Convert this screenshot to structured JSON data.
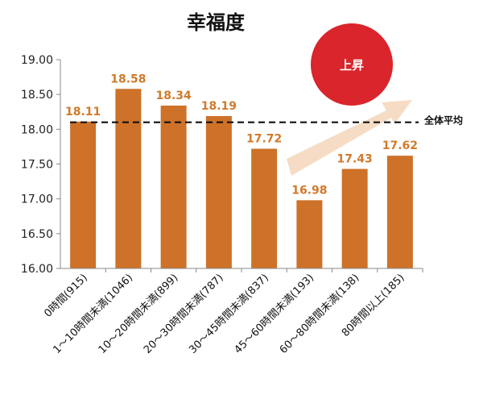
{
  "chart_data": {
    "type": "bar",
    "title": "幸福度",
    "categories": [
      "0時間(915)",
      "1～10時間未満(1046)",
      "10～20時間未満(899)",
      "20～30時間未満(787)",
      "30～45時間未満(837)",
      "45～60時間未満(193)",
      "60～80時間未満(138)",
      "80時間以上(185)"
    ],
    "values": [
      18.11,
      18.58,
      18.34,
      18.19,
      17.72,
      16.98,
      17.43,
      17.62
    ],
    "data_labels": [
      "18.11",
      "18.58",
      "18.34",
      "18.19",
      "17.72",
      "16.98",
      "17.43",
      "17.62"
    ],
    "ylim": [
      16.0,
      19.0
    ],
    "yticks": [
      "16.00",
      "16.50",
      "17.00",
      "17.50",
      "18.00",
      "18.50",
      "19.00"
    ],
    "ytick_values": [
      16.0,
      16.5,
      17.0,
      17.5,
      18.0,
      18.5,
      19.0
    ],
    "average_line": {
      "label": "全体平均",
      "value": 18.1
    },
    "annotation": {
      "text": "上昇"
    },
    "grid": false,
    "legend": "none",
    "colors": {
      "bar": "#cd7228",
      "data_label": "#d07a2c",
      "badge": "#d9252b",
      "arrow": "#f6dcc4"
    }
  }
}
